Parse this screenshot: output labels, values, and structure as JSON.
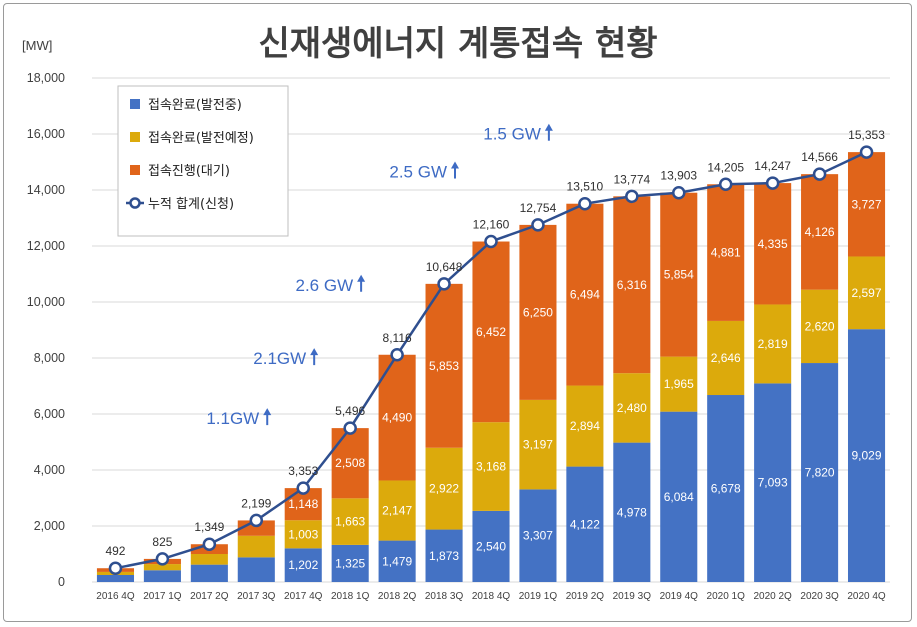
{
  "title": "신재생에너지 계통접속 현황",
  "unit_label": "[MW]",
  "colors": {
    "connected_generating": "#4472c4",
    "connected_scheduled": "#dcaa0c",
    "in_progress": "#e0641a",
    "cumulative_line": "#2f4f8f",
    "annotation": "#3e6bc4",
    "gridline": "#d9d9d9"
  },
  "legend": {
    "placement": "top-left",
    "items": [
      {
        "label": "접속완료(발전중)",
        "color": "#4472c4",
        "marker": "square"
      },
      {
        "label": "접속완료(발전예정)",
        "color": "#dcaa0c",
        "marker": "square"
      },
      {
        "label": "접속진행(대기)",
        "color": "#e0641a",
        "marker": "square"
      },
      {
        "label": "누적 합계(신청)",
        "color": "#2f4f8f",
        "marker": "line-circle"
      }
    ]
  },
  "annotations": [
    {
      "text": "1.1GW",
      "at_category": "2017 4Q",
      "value": 3353
    },
    {
      "text": "2.1GW",
      "at_category": "2018 1Q",
      "value": 5496
    },
    {
      "text": "2.6 GW",
      "at_category": "2018 2Q",
      "value": 8116
    },
    {
      "text": "2.5 GW",
      "at_category": "2018 4Q",
      "value": 12160
    },
    {
      "text": "1.5 GW",
      "at_category": "2019 2Q",
      "value": 13510
    }
  ],
  "chart_data": {
    "type": "bar",
    "stacked": true,
    "title": "신재생에너지 계통접속 현황",
    "ylabel": "[MW]",
    "ylim": [
      0,
      18000
    ],
    "yticks": [
      0,
      2000,
      4000,
      6000,
      8000,
      10000,
      12000,
      14000,
      16000,
      18000
    ],
    "ytick_labels": [
      "0",
      "2,000",
      "4,000",
      "6,000",
      "8,000",
      "10,000",
      "12,000",
      "14,000",
      "16,000",
      "18,000"
    ],
    "grid": true,
    "categories": [
      "2016 4Q",
      "2017 1Q",
      "2017 2Q",
      "2017 3Q",
      "2017 4Q",
      "2018 1Q",
      "2018 2Q",
      "2018 3Q",
      "2018 4Q",
      "2019 1Q",
      "2019 2Q",
      "2019 3Q",
      "2019 4Q",
      "2020 1Q",
      "2020 2Q",
      "2020 3Q",
      "2020 4Q"
    ],
    "series": [
      {
        "name": "접속완료(발전중)",
        "type": "bar",
        "values": [
          250,
          420,
          620,
          880,
          1202,
          1325,
          1479,
          1873,
          2540,
          3307,
          4122,
          4978,
          6084,
          6678,
          7093,
          7820,
          9029
        ],
        "labels": [
          "",
          "",
          "",
          "",
          "1,202",
          "1,325",
          "1,479",
          "1,873",
          "2,540",
          "3,307",
          "4,122",
          "4,978",
          "6,084",
          "6,678",
          "7,093",
          "7,820",
          "9,029"
        ]
      },
      {
        "name": "접속완료(발전예정)",
        "type": "bar",
        "values": [
          110,
          220,
          380,
          770,
          1003,
          1663,
          2147,
          2922,
          3168,
          3197,
          2894,
          2480,
          1965,
          2646,
          2819,
          2620,
          2597
        ],
        "labels": [
          "",
          "",
          "",
          "",
          "1,003",
          "1,663",
          "2,147",
          "2,922",
          "3,168",
          "3,197",
          "2,894",
          "2,480",
          "1,965",
          "2,646",
          "2,819",
          "2,620",
          "2,597"
        ]
      },
      {
        "name": "접속진행(대기)",
        "type": "bar",
        "values": [
          132,
          185,
          349,
          549,
          1148,
          2508,
          4490,
          5853,
          6452,
          6250,
          6494,
          6316,
          5854,
          4881,
          4335,
          4126,
          3727
        ],
        "labels": [
          "",
          "",
          "",
          "",
          "1,148",
          "2,508",
          "4,490",
          "5,853",
          "6,452",
          "6,250",
          "6,494",
          "6,316",
          "5,854",
          "4,881",
          "4,335",
          "4,126",
          "3,727"
        ]
      },
      {
        "name": "누적 합계(신청)",
        "type": "line",
        "values": [
          492,
          825,
          1349,
          2199,
          3353,
          5496,
          8116,
          10648,
          12160,
          12754,
          13510,
          13774,
          13903,
          14205,
          14247,
          14566,
          15353
        ],
        "labels": [
          "492",
          "825",
          "1,349",
          "2,199",
          "3,353",
          "5,496",
          "8,116",
          "10,648",
          "12,160",
          "12,754",
          "13,510",
          "13,774",
          "13,903",
          "14,205",
          "14,247",
          "14,566",
          "15,353"
        ]
      }
    ]
  }
}
